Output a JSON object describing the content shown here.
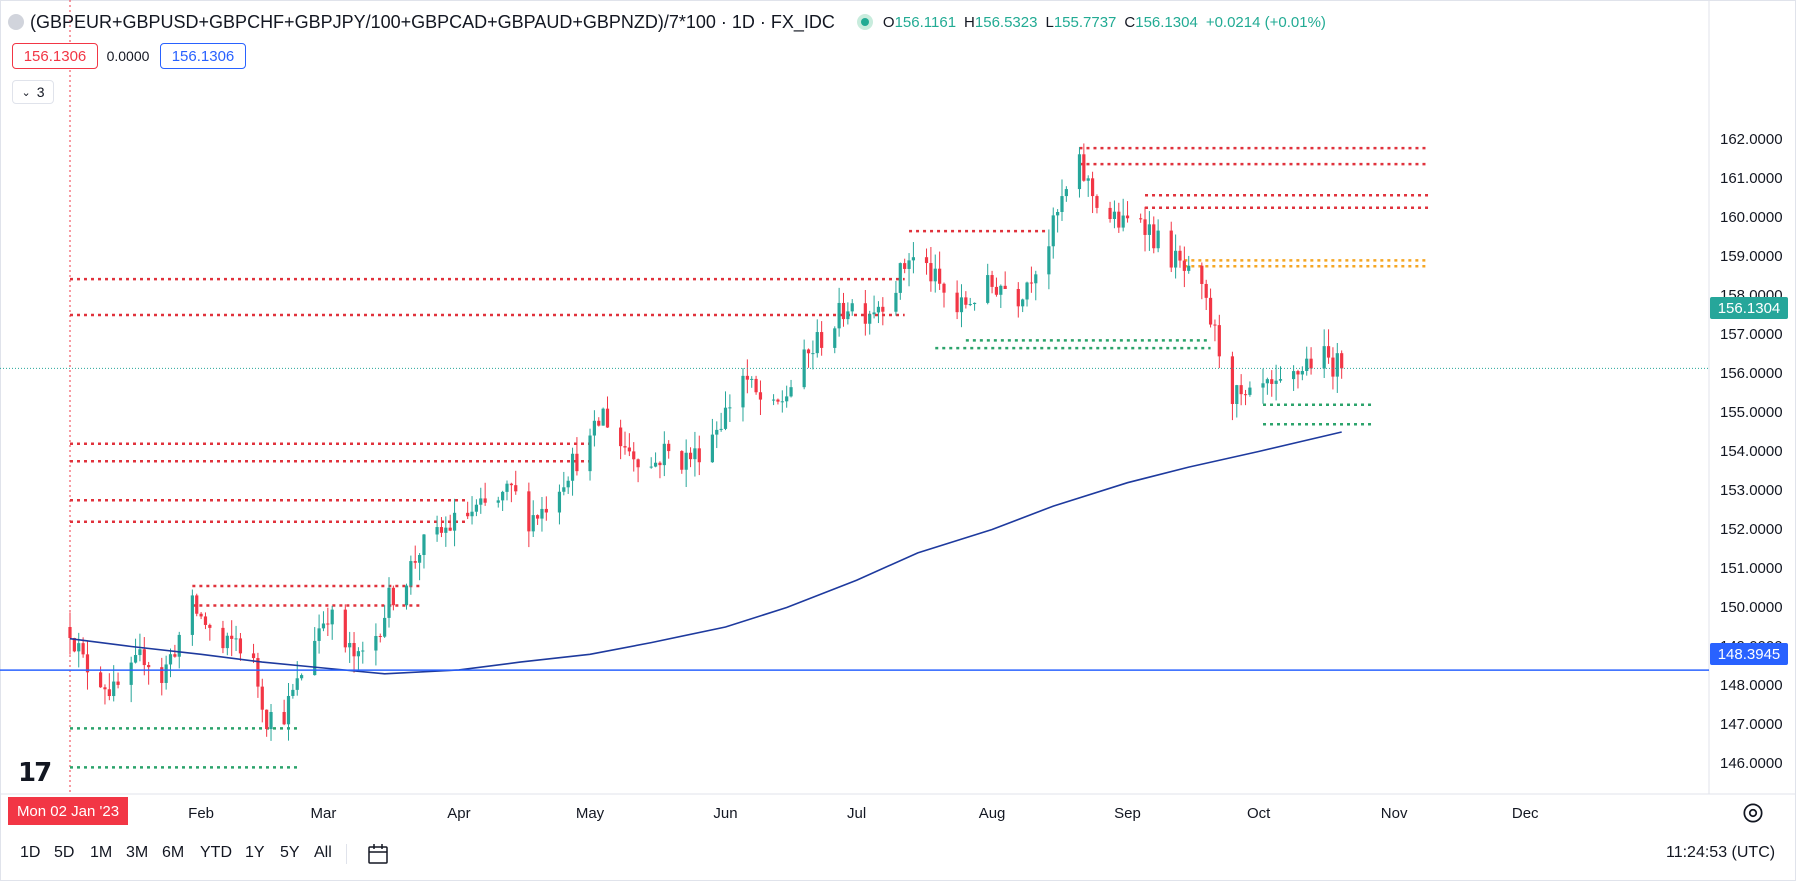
{
  "legend": {
    "symbol": "(GBPEUR+GBPUSD+GBPCHF+GBPJPY/100+GBPCAD+GBPAUD+GBPNZD)/7*100 · 1D · FX_IDC",
    "o_label": "O",
    "o_value": "156.1161",
    "h_label": "H",
    "h_value": "156.5323",
    "l_label": "L",
    "l_value": "155.7737",
    "c_label": "C",
    "c_value": "156.1304",
    "change": "+0.0214 (+0.01%)"
  },
  "trade": {
    "sell_price": "156.1306",
    "spread": "0.0000",
    "buy_price": "156.1306"
  },
  "indicators": {
    "count": "3"
  },
  "logo": {
    "text": "17"
  },
  "axes": {
    "y_ticks": [
      "162.0000",
      "161.0000",
      "160.0000",
      "159.0000",
      "158.0000",
      "157.0000",
      "156.0000",
      "155.0000",
      "154.0000",
      "153.0000",
      "152.0000",
      "151.0000",
      "150.0000",
      "149.0000",
      "148.0000",
      "147.0000",
      "146.0000"
    ],
    "x_ticks": [
      "Feb",
      "Mar",
      "Apr",
      "May",
      "Jun",
      "Jul",
      "Aug",
      "Sep",
      "Oct",
      "Nov",
      "Dec"
    ],
    "cursor_date": "Mon 02 Jan '23"
  },
  "tags": {
    "last_price": "156.1304",
    "hline_price": "148.3945"
  },
  "timeframes": [
    "1D",
    "5D",
    "1M",
    "3M",
    "6M",
    "YTD",
    "1Y",
    "5Y",
    "All"
  ],
  "clock": "11:24:53 (UTC)",
  "colors": {
    "up": "#26a69a",
    "down": "#f23645",
    "ma": "#1e3a9e",
    "hline": "#2962ff",
    "resistance": "#e0323c",
    "support": "#2ba36b",
    "zone": "#f5a623"
  },
  "chart_data": {
    "type": "candlestick",
    "instrument": "(GBPEUR+GBPUSD+GBPCHF+GBPJPY/100+GBPCAD+GBPAUD+GBPNZD)/7*100",
    "interval": "1D",
    "x_range": [
      "2023-01-02",
      "2023-12-31"
    ],
    "ylim": [
      145.5,
      162.5
    ],
    "anchors": [
      [
        "2023-01-02",
        149.5
      ],
      [
        "2023-01-05",
        148.6
      ],
      [
        "2023-01-09",
        148.2
      ],
      [
        "2023-01-12",
        147.8
      ],
      [
        "2023-01-16",
        148.3
      ],
      [
        "2023-01-19",
        148.8
      ],
      [
        "2023-01-23",
        148.2
      ],
      [
        "2023-01-26",
        149.0
      ],
      [
        "2023-01-30",
        150.0
      ],
      [
        "2023-02-02",
        149.6
      ],
      [
        "2023-02-06",
        148.9
      ],
      [
        "2023-02-09",
        149.2
      ],
      [
        "2023-02-13",
        148.5
      ],
      [
        "2023-02-16",
        147.2
      ],
      [
        "2023-02-20",
        147.3
      ],
      [
        "2023-02-23",
        148.0
      ],
      [
        "2023-02-27",
        149.3
      ],
      [
        "2023-03-02",
        149.9
      ],
      [
        "2023-03-06",
        149.0
      ],
      [
        "2023-03-09",
        148.6
      ],
      [
        "2023-03-13",
        149.3
      ],
      [
        "2023-03-16",
        150.2
      ],
      [
        "2023-03-20",
        150.8
      ],
      [
        "2023-03-23",
        151.5
      ],
      [
        "2023-03-27",
        151.8
      ],
      [
        "2023-03-30",
        152.1
      ],
      [
        "2023-04-03",
        152.4
      ],
      [
        "2023-04-06",
        152.5
      ],
      [
        "2023-04-10",
        152.7
      ],
      [
        "2023-04-13",
        153.0
      ],
      [
        "2023-04-17",
        152.3
      ],
      [
        "2023-04-20",
        152.5
      ],
      [
        "2023-04-24",
        153.2
      ],
      [
        "2023-04-27",
        153.7
      ],
      [
        "2023-05-01",
        154.2
      ],
      [
        "2023-05-04",
        155.0
      ],
      [
        "2023-05-08",
        154.2
      ],
      [
        "2023-05-11",
        154.0
      ],
      [
        "2023-05-15",
        153.6
      ],
      [
        "2023-05-18",
        154.0
      ],
      [
        "2023-05-22",
        153.8
      ],
      [
        "2023-05-25",
        153.9
      ],
      [
        "2023-05-29",
        154.5
      ],
      [
        "2023-06-01",
        155.0
      ],
      [
        "2023-06-05",
        156.0
      ],
      [
        "2023-06-08",
        155.4
      ],
      [
        "2023-06-12",
        155.0
      ],
      [
        "2023-06-15",
        155.5
      ],
      [
        "2023-06-19",
        156.3
      ],
      [
        "2023-06-22",
        156.8
      ],
      [
        "2023-06-26",
        157.3
      ],
      [
        "2023-06-29",
        157.8
      ],
      [
        "2023-07-03",
        157.6
      ],
      [
        "2023-07-06",
        157.8
      ],
      [
        "2023-07-10",
        158.3
      ],
      [
        "2023-07-13",
        159.0
      ],
      [
        "2023-07-17",
        158.7
      ],
      [
        "2023-07-20",
        158.2
      ],
      [
        "2023-07-24",
        157.6
      ],
      [
        "2023-07-27",
        157.9
      ],
      [
        "2023-07-31",
        158.2
      ],
      [
        "2023-08-03",
        158.3
      ],
      [
        "2023-08-07",
        158.0
      ],
      [
        "2023-08-10",
        158.6
      ],
      [
        "2023-08-14",
        159.4
      ],
      [
        "2023-08-17",
        160.4
      ],
      [
        "2023-08-21",
        161.3
      ],
      [
        "2023-08-24",
        160.6
      ],
      [
        "2023-08-28",
        160.0
      ],
      [
        "2023-08-31",
        159.8
      ],
      [
        "2023-09-04",
        160.1
      ],
      [
        "2023-09-07",
        159.5
      ],
      [
        "2023-09-11",
        159.0
      ],
      [
        "2023-09-14",
        158.6
      ],
      [
        "2023-09-18",
        158.0
      ],
      [
        "2023-09-21",
        157.0
      ],
      [
        "2023-09-25",
        155.5
      ],
      [
        "2023-09-28",
        155.2
      ],
      [
        "2023-10-02",
        155.6
      ],
      [
        "2023-10-05",
        155.5
      ],
      [
        "2023-10-09",
        155.9
      ],
      [
        "2023-10-12",
        156.3
      ],
      [
        "2023-10-16",
        156.4
      ],
      [
        "2023-10-20",
        156.13
      ]
    ],
    "moving_average": [
      [
        "2023-01-02",
        149.2
      ],
      [
        "2023-01-16",
        149.0
      ],
      [
        "2023-02-01",
        148.8
      ],
      [
        "2023-02-15",
        148.6
      ],
      [
        "2023-03-01",
        148.45
      ],
      [
        "2023-03-15",
        148.3
      ],
      [
        "2023-04-01",
        148.4
      ],
      [
        "2023-04-15",
        148.6
      ],
      [
        "2023-05-01",
        148.8
      ],
      [
        "2023-05-15",
        149.1
      ],
      [
        "2023-06-01",
        149.5
      ],
      [
        "2023-06-15",
        150.0
      ],
      [
        "2023-07-01",
        150.7
      ],
      [
        "2023-07-15",
        151.4
      ],
      [
        "2023-08-01",
        152.0
      ],
      [
        "2023-08-15",
        152.6
      ],
      [
        "2023-09-01",
        153.2
      ],
      [
        "2023-09-15",
        153.6
      ],
      [
        "2023-10-01",
        154.0
      ],
      [
        "2023-10-20",
        154.5
      ]
    ],
    "horizontal_line": {
      "value": 148.3945
    },
    "levels": [
      {
        "kind": "resistance",
        "y": 158.42,
        "x1": "2023-01-02",
        "x2": "2023-07-12"
      },
      {
        "kind": "resistance",
        "y": 157.5,
        "x1": "2023-01-02",
        "x2": "2023-07-12"
      },
      {
        "kind": "resistance",
        "y": 154.2,
        "x1": "2023-01-02",
        "x2": "2023-05-01"
      },
      {
        "kind": "resistance",
        "y": 153.75,
        "x1": "2023-01-02",
        "x2": "2023-05-01"
      },
      {
        "kind": "resistance",
        "y": 152.75,
        "x1": "2023-01-02",
        "x2": "2023-04-03"
      },
      {
        "kind": "resistance",
        "y": 152.2,
        "x1": "2023-01-02",
        "x2": "2023-04-03"
      },
      {
        "kind": "resistance",
        "y": 150.55,
        "x1": "2023-01-30",
        "x2": "2023-03-23"
      },
      {
        "kind": "resistance",
        "y": 150.05,
        "x1": "2023-01-30",
        "x2": "2023-03-23"
      },
      {
        "kind": "resistance",
        "y": 159.65,
        "x1": "2023-07-13",
        "x2": "2023-08-14"
      },
      {
        "kind": "resistance",
        "y": 161.78,
        "x1": "2023-08-21",
        "x2": "2023-11-09"
      },
      {
        "kind": "resistance",
        "y": 161.37,
        "x1": "2023-08-21",
        "x2": "2023-11-09"
      },
      {
        "kind": "resistance",
        "y": 160.57,
        "x1": "2023-09-05",
        "x2": "2023-11-09"
      },
      {
        "kind": "resistance",
        "y": 160.25,
        "x1": "2023-09-05",
        "x2": "2023-11-09"
      },
      {
        "kind": "zone",
        "y": 158.9,
        "x1": "2023-09-14",
        "x2": "2023-11-09"
      },
      {
        "kind": "zone",
        "y": 158.75,
        "x1": "2023-09-14",
        "x2": "2023-11-09"
      },
      {
        "kind": "support",
        "y": 156.85,
        "x1": "2023-07-26",
        "x2": "2023-09-20"
      },
      {
        "kind": "support",
        "y": 156.65,
        "x1": "2023-07-19",
        "x2": "2023-09-20"
      },
      {
        "kind": "support",
        "y": 155.2,
        "x1": "2023-10-02",
        "x2": "2023-10-27"
      },
      {
        "kind": "support",
        "y": 154.7,
        "x1": "2023-10-02",
        "x2": "2023-10-27"
      },
      {
        "kind": "support",
        "y": 146.9,
        "x1": "2023-01-02",
        "x2": "2023-02-23"
      },
      {
        "kind": "support",
        "y": 145.9,
        "x1": "2023-01-02",
        "x2": "2023-02-23"
      }
    ]
  }
}
